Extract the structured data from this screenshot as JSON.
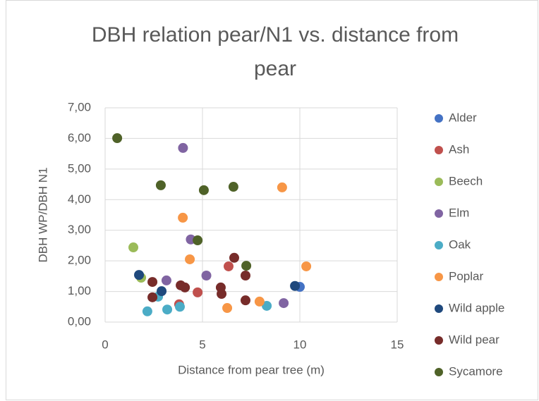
{
  "chart_data": {
    "type": "scatter",
    "title": "DBH relation pear/N1 vs. distance from pear",
    "x_label": "Distance from pear tree (m)",
    "y_label": "DBH WP/DBH N1",
    "xlim": [
      0,
      15
    ],
    "xticks": [
      0,
      5,
      10,
      15
    ],
    "ylim": [
      0,
      7
    ],
    "yticks": [
      {
        "value": 0,
        "label": "0,00"
      },
      {
        "value": 1,
        "label": "1,00"
      },
      {
        "value": 2,
        "label": "2,00"
      },
      {
        "value": 3,
        "label": "3,00"
      },
      {
        "value": 4,
        "label": "4,00"
      },
      {
        "value": 5,
        "label": "5,00"
      },
      {
        "value": 6,
        "label": "6,00"
      },
      {
        "value": 7,
        "label": "7,00"
      }
    ],
    "grid": true,
    "legend": "right",
    "series": [
      {
        "name": "Alder",
        "color": "#4472c4",
        "x": [
          10.0
        ],
        "values": [
          1.15
        ]
      },
      {
        "name": "Ash",
        "color": "#c0504d",
        "x": [
          6.34,
          4.75,
          3.8
        ],
        "values": [
          1.82,
          0.97,
          0.58
        ]
      },
      {
        "name": "Beech",
        "color": "#9bbb59",
        "x": [
          1.45,
          1.85
        ],
        "values": [
          2.44,
          1.45
        ]
      },
      {
        "name": "Elm",
        "color": "#8064a2",
        "x": [
          4.0,
          4.4,
          3.15,
          5.2,
          9.17
        ],
        "values": [
          5.69,
          2.7,
          1.36,
          1.52,
          0.62
        ]
      },
      {
        "name": "Oak",
        "color": "#4bacc6",
        "x": [
          2.17,
          3.19,
          3.84,
          2.72,
          8.3
        ],
        "values": [
          0.35,
          0.41,
          0.5,
          0.83,
          0.53
        ]
      },
      {
        "name": "Poplar",
        "color": "#f79646",
        "x": [
          3.99,
          4.35,
          9.09,
          10.33,
          6.27,
          7.93
        ],
        "values": [
          3.41,
          2.05,
          4.4,
          1.82,
          0.46,
          0.67
        ]
      },
      {
        "name": "Wild apple",
        "color": "#1f497d",
        "x": [
          1.74,
          2.9,
          9.75
        ],
        "values": [
          1.54,
          1.01,
          1.18
        ]
      },
      {
        "name": "Wild pear",
        "color": "#772c2a",
        "x": [
          2.43,
          2.43,
          3.88,
          4.1,
          5.94,
          5.98,
          6.63,
          7.21,
          7.21
        ],
        "values": [
          1.31,
          0.81,
          1.2,
          1.13,
          1.13,
          0.92,
          2.1,
          1.52,
          0.71
        ]
      },
      {
        "name": "Sycamore",
        "color": "#4f6228",
        "x": [
          0.62,
          2.86,
          5.07,
          6.59,
          4.75,
          7.25
        ],
        "values": [
          6.01,
          4.47,
          4.31,
          4.42,
          2.67,
          1.84
        ]
      }
    ]
  }
}
